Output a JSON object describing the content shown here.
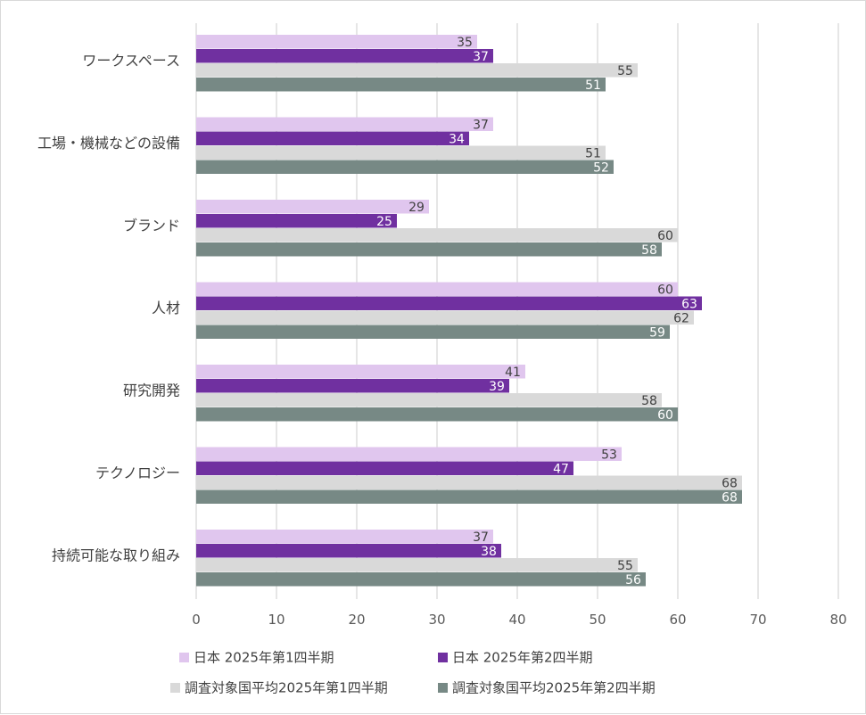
{
  "chart_data": {
    "type": "bar",
    "orientation": "horizontal",
    "categories": [
      "ワークスペース",
      "工場・機械などの設備",
      "ブランド",
      "人材",
      "研究開発",
      "テクノロジー",
      "持続可能な取り組み"
    ],
    "series": [
      {
        "name": "日本 2025年第1四半期",
        "color": "#e0c6ee",
        "label_color": "#404040",
        "values": [
          35,
          37,
          29,
          60,
          41,
          53,
          37
        ]
      },
      {
        "name": "日本 2025年第2四半期",
        "color": "#7030a0",
        "label_color": "#ffffff",
        "values": [
          37,
          34,
          25,
          63,
          39,
          47,
          38
        ]
      },
      {
        "name": "調査対象国平均2025年第1四半期",
        "color": "#d9d9d9",
        "label_color": "#404040",
        "values": [
          55,
          51,
          60,
          62,
          58,
          68,
          55
        ]
      },
      {
        "name": "調査対象国平均2025年第2四半期",
        "color": "#778985",
        "label_color": "#ffffff",
        "values": [
          51,
          52,
          58,
          59,
          60,
          68,
          56
        ]
      }
    ],
    "xlim": [
      0,
      80
    ],
    "xticks": [
      0,
      10,
      20,
      30,
      40,
      50,
      60,
      70,
      80
    ],
    "grid": true,
    "legend_position": "bottom",
    "title": "",
    "xlabel": "",
    "ylabel": ""
  }
}
